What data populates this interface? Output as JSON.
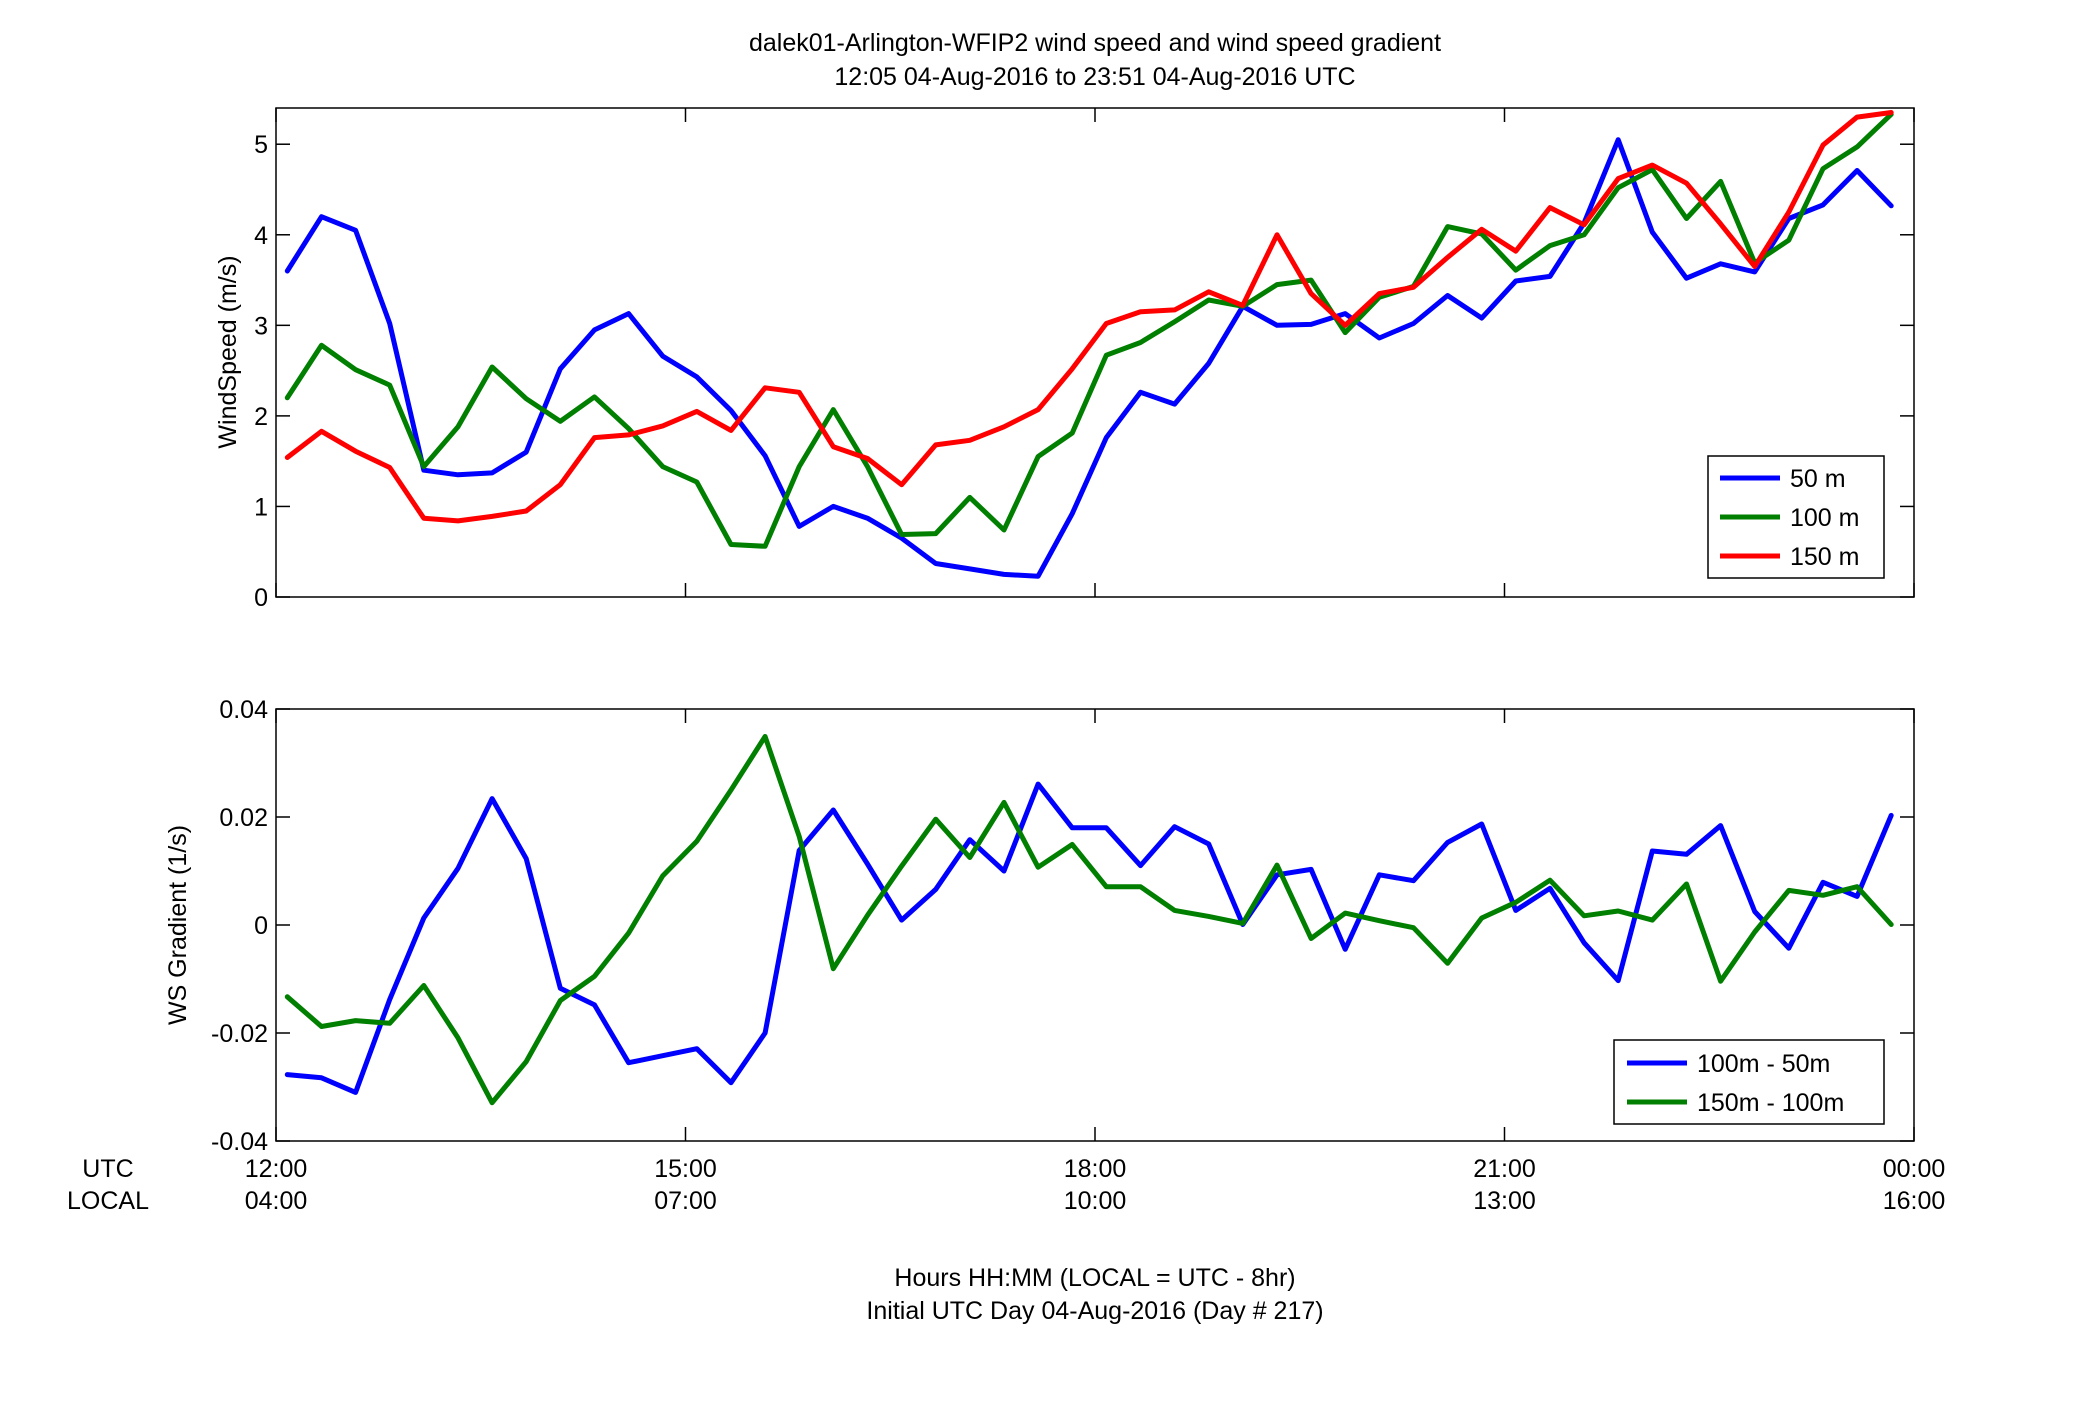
{
  "figure": {
    "title_line1": "dalek01-Arlington-WFIP2  wind speed and wind speed gradient",
    "title_line2": "12:05 04-Aug-2016 to 23:51 04-Aug-2016  UTC",
    "xlabel_line1": "Hours HH:MM  (LOCAL = UTC - 8hr)",
    "xlabel_line2": "Initial UTC Day 04-Aug-2016 (Day # 217)",
    "utc_row_label": "UTC",
    "local_row_label": "LOCAL",
    "x_ticks_utc": [
      "12:00",
      "15:00",
      "18:00",
      "21:00",
      "00:00"
    ],
    "x_ticks_local": [
      "04:00",
      "07:00",
      "10:00",
      "13:00",
      "16:00"
    ]
  },
  "chart_data": [
    {
      "type": "line",
      "ylabel": "WindSpeed (m/s)",
      "xlim": [
        12,
        24
      ],
      "ylim": [
        0,
        5.4
      ],
      "yticks": [
        0,
        1,
        2,
        3,
        4,
        5
      ],
      "ytick_labels": [
        "0",
        "1",
        "2",
        "3",
        "4",
        "5"
      ],
      "legend_position": "bottom-right",
      "x": [
        12.083,
        12.333,
        12.583,
        12.833,
        13.083,
        13.333,
        13.583,
        13.833,
        14.083,
        14.333,
        14.583,
        14.833,
        15.083,
        15.333,
        15.583,
        15.833,
        16.083,
        16.333,
        16.583,
        16.833,
        17.083,
        17.333,
        17.583,
        17.833,
        18.083,
        18.333,
        18.583,
        18.833,
        19.083,
        19.333,
        19.583,
        19.833,
        20.083,
        20.333,
        20.583,
        20.833,
        21.083,
        21.333,
        21.583,
        21.833,
        22.083,
        22.333,
        22.583,
        22.833,
        23.083,
        23.333,
        23.583,
        23.833
      ],
      "series": [
        {
          "name": "50 m",
          "color": "#0000ff",
          "values": [
            3.6,
            4.2,
            4.05,
            3.02,
            1.4,
            1.35,
            1.37,
            1.6,
            2.52,
            2.95,
            3.13,
            2.66,
            2.43,
            2.06,
            1.56,
            0.78,
            1.0,
            0.87,
            0.65,
            0.37,
            0.31,
            0.25,
            0.23,
            0.92,
            1.76,
            2.26,
            2.13,
            2.58,
            3.21,
            3.0,
            3.01,
            3.13,
            2.86,
            3.02,
            3.33,
            3.08,
            3.49,
            3.54,
            4.13,
            5.05,
            4.03,
            3.52,
            3.68,
            3.59,
            4.18,
            4.33,
            4.71,
            4.32
          ]
        },
        {
          "name": "100 m",
          "color": "#007f00",
          "values": [
            2.2,
            2.78,
            2.51,
            2.34,
            1.44,
            1.88,
            2.54,
            2.19,
            1.94,
            2.21,
            1.86,
            1.44,
            1.27,
            0.58,
            0.56,
            1.44,
            2.07,
            1.44,
            0.69,
            0.7,
            1.1,
            0.74,
            1.55,
            1.81,
            2.67,
            2.81,
            3.04,
            3.28,
            3.21,
            3.45,
            3.5,
            2.92,
            3.31,
            3.43,
            4.09,
            4.01,
            3.61,
            3.88,
            4.0,
            4.52,
            4.72,
            4.18,
            4.59,
            3.69,
            3.94,
            4.73,
            4.97,
            5.33
          ]
        },
        {
          "name": "150 m",
          "color": "#ff0000",
          "values": [
            1.54,
            1.83,
            1.61,
            1.43,
            0.87,
            0.84,
            0.89,
            0.95,
            1.24,
            1.76,
            1.79,
            1.89,
            2.05,
            1.84,
            2.31,
            2.26,
            1.66,
            1.53,
            1.24,
            1.68,
            1.73,
            1.88,
            2.07,
            2.52,
            3.02,
            3.15,
            3.17,
            3.37,
            3.22,
            4.0,
            3.35,
            3.0,
            3.35,
            3.42,
            3.75,
            4.06,
            3.82,
            4.3,
            4.11,
            4.62,
            4.77,
            4.57,
            4.12,
            3.65,
            4.25,
            4.99,
            5.3,
            5.35
          ]
        }
      ]
    },
    {
      "type": "line",
      "ylabel": "WS Gradient (1/s)",
      "xlim": [
        12,
        24
      ],
      "ylim": [
        -0.04,
        0.04
      ],
      "yticks": [
        -0.04,
        -0.02,
        0,
        0.02,
        0.04
      ],
      "ytick_labels": [
        "-0.04",
        "-0.02",
        "0",
        "0.02",
        "0.04"
      ],
      "legend_position": "bottom-right",
      "x": [
        12.083,
        12.333,
        12.583,
        12.833,
        13.083,
        13.333,
        13.583,
        13.833,
        14.083,
        14.333,
        14.583,
        14.833,
        15.083,
        15.333,
        15.583,
        15.833,
        16.083,
        16.333,
        16.583,
        16.833,
        17.083,
        17.333,
        17.583,
        17.833,
        18.083,
        18.333,
        18.583,
        18.833,
        19.083,
        19.333,
        19.583,
        19.833,
        20.083,
        20.333,
        20.583,
        20.833,
        21.083,
        21.333,
        21.583,
        21.833,
        22.083,
        22.333,
        22.583,
        22.833,
        23.083,
        23.333,
        23.583,
        23.833
      ],
      "series": [
        {
          "name": "100m - 50m",
          "color": "#0000ff",
          "values": [
            -0.0277,
            -0.0283,
            -0.031,
            -0.0138,
            0.0013,
            0.0105,
            0.0234,
            0.0123,
            -0.0117,
            -0.0148,
            -0.0255,
            -0.0242,
            -0.0229,
            -0.0292,
            -0.02,
            0.0138,
            0.0213,
            0.0113,
            0.0009,
            0.0066,
            0.0158,
            0.01,
            0.0261,
            0.018,
            0.018,
            0.011,
            0.0182,
            0.015,
            0.0001,
            0.0093,
            0.0103,
            -0.0045,
            0.0093,
            0.0082,
            0.0153,
            0.0187,
            0.0027,
            0.0068,
            -0.0033,
            -0.0103,
            0.0137,
            0.0131,
            0.0184,
            0.0025,
            -0.0043,
            0.0079,
            0.0053,
            0.0203
          ]
        },
        {
          "name": "150m - 100m",
          "color": "#007f00",
          "values": [
            -0.0133,
            -0.0188,
            -0.0177,
            -0.0182,
            -0.0112,
            -0.0209,
            -0.0329,
            -0.0253,
            -0.014,
            -0.0095,
            -0.0015,
            0.0091,
            0.0155,
            0.025,
            0.0349,
            0.0164,
            -0.0081,
            0.0018,
            0.0109,
            0.0196,
            0.0125,
            0.0227,
            0.0107,
            0.0149,
            0.0071,
            0.0071,
            0.0027,
            0.0016,
            0.0003,
            0.0111,
            -0.0025,
            0.0022,
            0.0008,
            -0.0005,
            -0.0071,
            0.0013,
            0.0042,
            0.0083,
            0.0017,
            0.0026,
            0.0009,
            0.0076,
            -0.0104,
            -0.0013,
            0.0064,
            0.0055,
            0.0071,
            0.0001
          ]
        }
      ]
    }
  ]
}
